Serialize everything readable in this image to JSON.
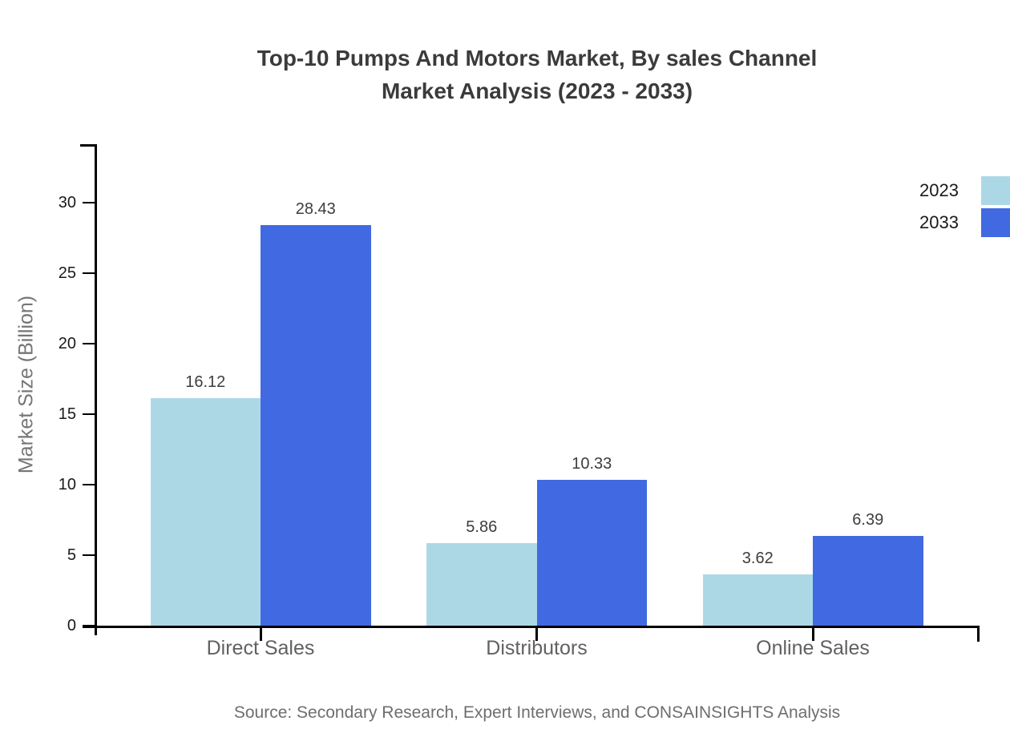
{
  "title": {
    "line1": "Top-10 Pumps And Motors Market, By sales Channel",
    "line2": "Market Analysis (2023 - 2033)"
  },
  "source_note": "Source: Secondary Research, Expert Interviews, and CONSAINSIGHTS Analysis",
  "colors": {
    "series_2023": "#ACD8E6",
    "series_2033": "#4169E1",
    "title_text": "#3b3b3b",
    "axis_line": "#000000",
    "tick_text": "#1a1a1a",
    "value_label_text": "#3d3d3d",
    "category_text": "#616161",
    "y_axis_title_text": "#757575",
    "source_text": "#6e6e6e"
  },
  "chart_data": {
    "type": "bar",
    "title": "Top-10 Pumps And Motors Market, By sales Channel Market Analysis (2023 - 2033)",
    "categories": [
      "Direct Sales",
      "Distributors",
      "Online Sales"
    ],
    "series": [
      {
        "name": "2023",
        "color_key": "series_2023",
        "values": [
          16.12,
          5.86,
          3.62
        ]
      },
      {
        "name": "2033",
        "color_key": "series_2033",
        "values": [
          28.43,
          10.33,
          6.39
        ]
      }
    ],
    "xlabel": "",
    "ylabel": "Market Size (Billion)",
    "ylim": [
      0,
      30
    ],
    "yticks": [
      0,
      5,
      10,
      15,
      20,
      25,
      30
    ],
    "grid": false,
    "value_labels": true,
    "legend_position": "top-right"
  },
  "legend": {
    "items": [
      {
        "label": "2023",
        "color_key": "series_2023"
      },
      {
        "label": "2033",
        "color_key": "series_2033"
      }
    ]
  }
}
